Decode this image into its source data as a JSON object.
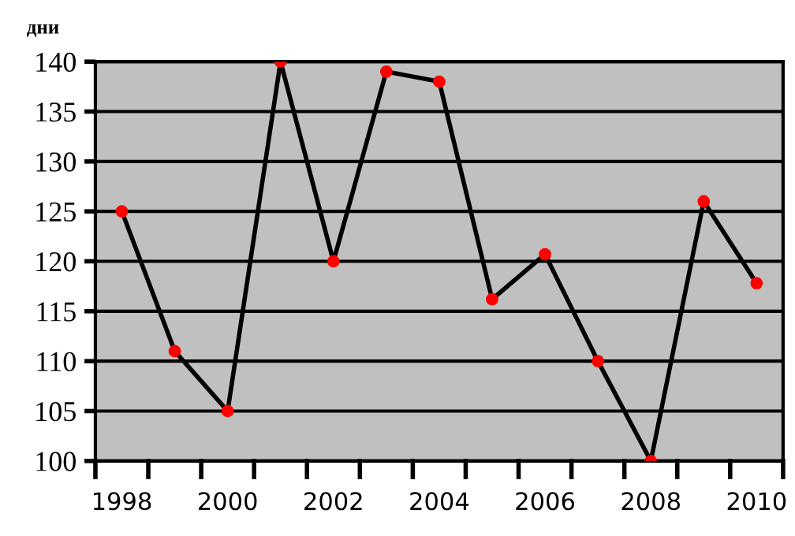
{
  "chart_data": {
    "type": "line",
    "ylabel": "дни",
    "categories": [
      "1998",
      null,
      "2000",
      null,
      "2002",
      null,
      "2004",
      null,
      "2006",
      null,
      "2008",
      null,
      "2010"
    ],
    "series": [
      {
        "color": "#000000",
        "colors": [
          "#ff0000",
          "#ff0000",
          "#ff0000",
          "#ff0000",
          "#ff0000",
          "#ff0000",
          "#ff0000",
          "#ff0000",
          "#ff0000",
          "#ff0000",
          "#ff0000",
          "#ff0000",
          "#ff0000"
        ],
        "values": [
          125,
          111,
          105,
          140,
          120,
          139,
          138,
          116.2,
          120.7,
          110,
          100,
          126,
          117.8
        ]
      }
    ],
    "ylim": [
      100,
      140
    ],
    "yticks": [
      100,
      105,
      110,
      115,
      120,
      125,
      130,
      135,
      140
    ],
    "grid": "y",
    "marker": "circle",
    "line_style": "solid",
    "legend": false
  }
}
